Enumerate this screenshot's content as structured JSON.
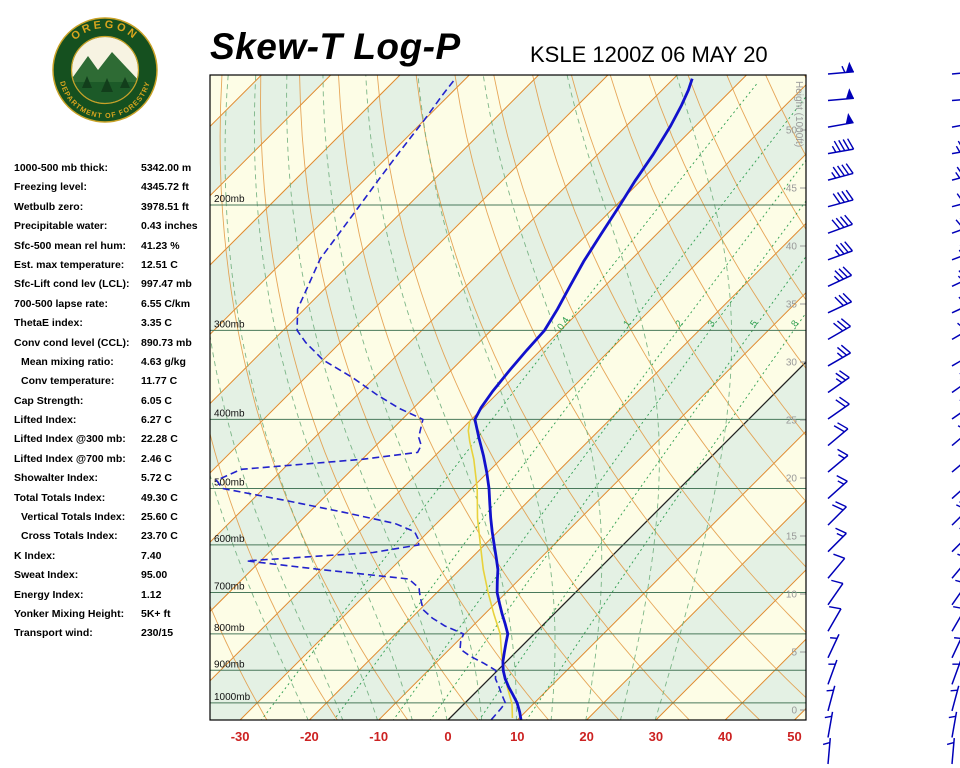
{
  "header": {
    "title": "Skew-T Log-P",
    "station_time": "KSLE 1200Z 06 MAY 20",
    "logo_text_top": "OREGON",
    "logo_text_bottom": "DEPARTMENT OF FORESTRY"
  },
  "indices": {
    "rows": [
      {
        "label": "1000-500 mb thick:",
        "value": "5342.00 m",
        "indent": false
      },
      {
        "label": "Freezing level:",
        "value": "4345.72 ft",
        "indent": false
      },
      {
        "label": "Wetbulb zero:",
        "value": "3978.51 ft",
        "indent": false
      },
      {
        "label": "Precipitable water:",
        "value": "0.43 inches",
        "indent": false
      },
      {
        "label": "Sfc-500 mean rel hum:",
        "value": "41.23 %",
        "indent": false
      },
      {
        "label": "Est. max temperature:",
        "value": "12.51 C",
        "indent": false
      },
      {
        "label": "Sfc-Lift cond lev (LCL):",
        "value": "997.47 mb",
        "indent": false
      },
      {
        "label": "700-500 lapse rate:",
        "value": "6.55 C/km",
        "indent": false
      },
      {
        "label": "ThetaE index:",
        "value": "3.35 C",
        "indent": false
      },
      {
        "label": "Conv cond level (CCL):",
        "value": "890.73 mb",
        "indent": false
      },
      {
        "label": "Mean mixing ratio:",
        "value": "4.63 g/kg",
        "indent": true
      },
      {
        "label": "Conv temperature:",
        "value": "11.77 C",
        "indent": true
      },
      {
        "label": "Cap Strength:",
        "value": "6.05 C",
        "indent": false
      },
      {
        "label": "Lifted Index:",
        "value": "6.27 C",
        "indent": false
      },
      {
        "label": "Lifted Index @300 mb:",
        "value": "22.28 C",
        "indent": false
      },
      {
        "label": "Lifted Index @700 mb:",
        "value": "2.46 C",
        "indent": false
      },
      {
        "label": "Showalter Index:",
        "value": "5.72 C",
        "indent": false
      },
      {
        "label": "Total Totals Index:",
        "value": "49.30 C",
        "indent": false
      },
      {
        "label": "Vertical Totals Index:",
        "value": "25.60 C",
        "indent": true
      },
      {
        "label": "Cross Totals Index:",
        "value": "23.70 C",
        "indent": true
      },
      {
        "label": "K Index:",
        "value": "7.40",
        "indent": false
      },
      {
        "label": "Sweat Index:",
        "value": "95.00",
        "indent": false
      },
      {
        "label": "Energy Index:",
        "value": "1.12",
        "indent": false
      },
      {
        "label": "Yonker Mixing Height:",
        "value": "5K+ ft",
        "indent": false
      },
      {
        "label": "Transport wind:",
        "value": "230/15",
        "indent": false
      }
    ]
  },
  "chart_data": {
    "type": "skewt-log-p",
    "title": "Skew-T Log-P",
    "station_time": "KSLE 1200Z 06 MAY 20",
    "pressure_levels_mb": [
      200,
      300,
      400,
      500,
      600,
      700,
      800,
      900,
      1000
    ],
    "pressure_label_suffix": "mb",
    "temp_axis_c": [
      -30,
      -20,
      -10,
      0,
      10,
      20,
      30,
      40,
      50
    ],
    "mixing_ratio_lines_gkg": [
      0.4,
      1,
      2,
      3,
      5,
      8
    ],
    "moist_adiabat_starts_c": [
      -20,
      -15,
      -10,
      -5,
      0,
      5,
      10,
      15,
      20,
      25,
      30
    ],
    "height_scale_kft": [
      0,
      5,
      10,
      15,
      20,
      25,
      30,
      35,
      40,
      45,
      50
    ],
    "height_axis_label": "Height (1000ft)",
    "temperature_profile": [
      [
        1056,
        10.5
      ],
      [
        1030,
        9.2
      ],
      [
        1000,
        7.5
      ],
      [
        975,
        5.8
      ],
      [
        950,
        4.0
      ],
      [
        925,
        2.3
      ],
      [
        900,
        0.8
      ],
      [
        875,
        -0.5
      ],
      [
        850,
        -1.6
      ],
      [
        825,
        -2.7
      ],
      [
        800,
        -3.8
      ],
      [
        775,
        -5.6
      ],
      [
        750,
        -7.5
      ],
      [
        725,
        -9.4
      ],
      [
        700,
        -11.3
      ],
      [
        675,
        -12.9
      ],
      [
        650,
        -14.5
      ],
      [
        625,
        -16.5
      ],
      [
        600,
        -18.6
      ],
      [
        575,
        -20.8
      ],
      [
        550,
        -23.0
      ],
      [
        525,
        -25.2
      ],
      [
        500,
        -27.5
      ],
      [
        475,
        -30.1
      ],
      [
        450,
        -33.0
      ],
      [
        425,
        -36.2
      ],
      [
        400,
        -39.5
      ],
      [
        385,
        -40.3
      ],
      [
        365,
        -41.0
      ],
      [
        340,
        -41.6
      ],
      [
        320,
        -42.0
      ],
      [
        300,
        -42.3
      ],
      [
        280,
        -43.5
      ],
      [
        260,
        -45.0
      ],
      [
        240,
        -46.6
      ],
      [
        220,
        -48.0
      ],
      [
        200,
        -49.5
      ],
      [
        185,
        -50.8
      ],
      [
        170,
        -52.0
      ],
      [
        155,
        -53.6
      ],
      [
        145,
        -55.0
      ],
      [
        138,
        -56.2
      ],
      [
        133,
        -57.3
      ]
    ],
    "dewpoint_profile": [
      [
        1056,
        6.2
      ],
      [
        1020,
        6.0
      ],
      [
        1000,
        5.8
      ],
      [
        975,
        4.2
      ],
      [
        950,
        2.6
      ],
      [
        925,
        0.9
      ],
      [
        900,
        -0.3
      ],
      [
        880,
        -3.0
      ],
      [
        860,
        -6.0
      ],
      [
        840,
        -8.5
      ],
      [
        820,
        -9.5
      ],
      [
        800,
        -10.2
      ],
      [
        780,
        -14.0
      ],
      [
        760,
        -17.0
      ],
      [
        740,
        -19.5
      ],
      [
        720,
        -21.0
      ],
      [
        700,
        -22.5
      ],
      [
        690,
        -23.2
      ],
      [
        670,
        -26.0
      ],
      [
        650,
        -40.0
      ],
      [
        632,
        -52.0
      ],
      [
        615,
        -35.0
      ],
      [
        600,
        -29.5
      ],
      [
        588,
        -30.5
      ],
      [
        575,
        -32.0
      ],
      [
        560,
        -36.0
      ],
      [
        540,
        -45.0
      ],
      [
        520,
        -55.0
      ],
      [
        500,
        -66.0
      ],
      [
        487,
        -68.0
      ],
      [
        470,
        -66.0
      ],
      [
        455,
        -50.0
      ],
      [
        445,
        -43.0
      ],
      [
        435,
        -43.5
      ],
      [
        424,
        -45.0
      ],
      [
        412,
        -46.0
      ],
      [
        400,
        -47.0
      ],
      [
        386,
        -52.0
      ],
      [
        370,
        -57.0
      ],
      [
        350,
        -63.0
      ],
      [
        330,
        -70.0
      ],
      [
        312,
        -75.0
      ],
      [
        300,
        -78.0
      ],
      [
        280,
        -81.0
      ],
      [
        258,
        -83.0
      ],
      [
        238,
        -85.0
      ],
      [
        218,
        -86.0
      ],
      [
        200,
        -87.0
      ],
      [
        184,
        -88.0
      ],
      [
        168,
        -89.0
      ],
      [
        152,
        -90.0
      ],
      [
        140,
        -91.0
      ],
      [
        133,
        -91.5
      ]
    ],
    "parcel_profile": [
      [
        1050,
        9.0
      ],
      [
        1003,
        6.9
      ],
      [
        950,
        3.8
      ],
      [
        903,
        1.0
      ],
      [
        850,
        -2.0
      ],
      [
        800,
        -4.9
      ],
      [
        750,
        -8.7
      ],
      [
        700,
        -12.6
      ],
      [
        650,
        -16.6
      ],
      [
        600,
        -20.6
      ],
      [
        550,
        -24.9
      ],
      [
        500,
        -29.2
      ],
      [
        455,
        -33.9
      ],
      [
        430,
        -37.0
      ],
      [
        415,
        -38.8
      ],
      [
        402,
        -40.0
      ]
    ],
    "wind_barbs_top_to_bottom": [
      {
        "spd": 55,
        "dir": 265
      },
      {
        "spd": 50,
        "dir": 265
      },
      {
        "spd": 50,
        "dir": 260
      },
      {
        "spd": 45,
        "dir": 260
      },
      {
        "spd": 45,
        "dir": 255
      },
      {
        "spd": 40,
        "dir": 255
      },
      {
        "spd": 40,
        "dir": 250
      },
      {
        "spd": 35,
        "dir": 250
      },
      {
        "spd": 35,
        "dir": 245
      },
      {
        "spd": 30,
        "dir": 245
      },
      {
        "spd": 30,
        "dir": 240
      },
      {
        "spd": 25,
        "dir": 240
      },
      {
        "spd": 25,
        "dir": 235
      },
      {
        "spd": 20,
        "dir": 235
      },
      {
        "spd": 20,
        "dir": 230
      },
      {
        "spd": 15,
        "dir": 230
      },
      {
        "spd": 15,
        "dir": 228
      },
      {
        "spd": 20,
        "dir": 225
      },
      {
        "spd": 15,
        "dir": 225
      },
      {
        "spd": 10,
        "dir": 220
      },
      {
        "spd": 10,
        "dir": 215
      },
      {
        "spd": 10,
        "dir": 210
      },
      {
        "spd": 5,
        "dir": 205
      },
      {
        "spd": 5,
        "dir": 200
      },
      {
        "spd": 5,
        "dir": 195
      },
      {
        "spd": 5,
        "dir": 190
      },
      {
        "spd": 5,
        "dir": 185
      }
    ],
    "colors": {
      "band_cream": "#FDFDE6",
      "band_green": "#E4F1E4",
      "isotherm": "#E08A2E",
      "zero_isotherm": "#222222",
      "dry_adiabat": "#E2973F",
      "moist_adiabat": "#6FAE7C",
      "mixing_ratio": "#2E9E4F",
      "pressure_line": "#49795B",
      "temperature": "#1111CC",
      "dewpoint": "#2222CC",
      "parcel": "#E8D23C",
      "wind": "#0000B8",
      "axis_red": "#CC2222",
      "height_gray": "#999999"
    }
  }
}
